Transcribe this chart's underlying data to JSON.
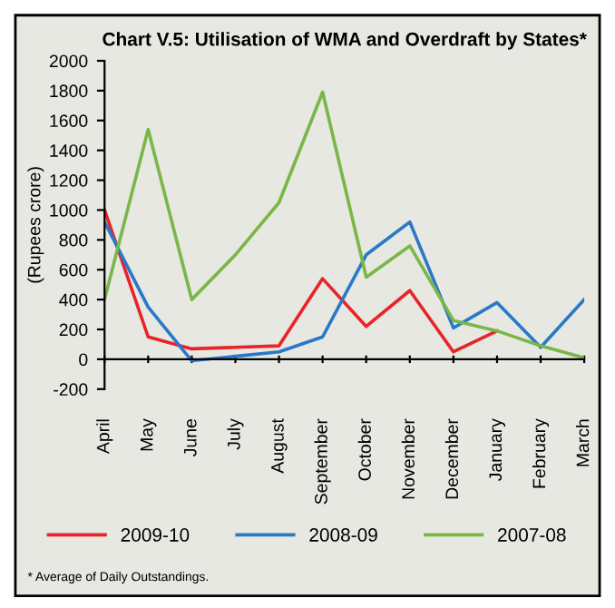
{
  "chart_data": {
    "type": "line",
    "title": "Chart V.5: Utilisation of WMA and Overdraft by States*",
    "ylabel": "(Rupees crore)",
    "categories": [
      "April",
      "May",
      "June",
      "July",
      "August",
      "September",
      "October",
      "November",
      "December",
      "January",
      "February",
      "March"
    ],
    "series": [
      {
        "name": "2009-10",
        "color": "#e8242a",
        "values": [
          1000,
          150,
          70,
          80,
          90,
          540,
          220,
          460,
          50,
          190,
          null,
          null
        ]
      },
      {
        "name": "2008-09",
        "color": "#2a78c8",
        "values": [
          920,
          350,
          -10,
          20,
          50,
          150,
          700,
          920,
          210,
          380,
          80,
          400
        ]
      },
      {
        "name": "2007-08",
        "color": "#7ab648",
        "values": [
          400,
          1540,
          400,
          700,
          1050,
          1790,
          550,
          760,
          260,
          190,
          90,
          10
        ]
      }
    ],
    "ylim": [
      -200,
      2000
    ],
    "yticks": [
      -200,
      0,
      200,
      400,
      600,
      800,
      1000,
      1200,
      1400,
      1600,
      1800,
      2000
    ],
    "legend": "bottom",
    "marker": "none",
    "line_style": "solid",
    "annotations": [
      "* Average of Daily Outstandings."
    ]
  }
}
